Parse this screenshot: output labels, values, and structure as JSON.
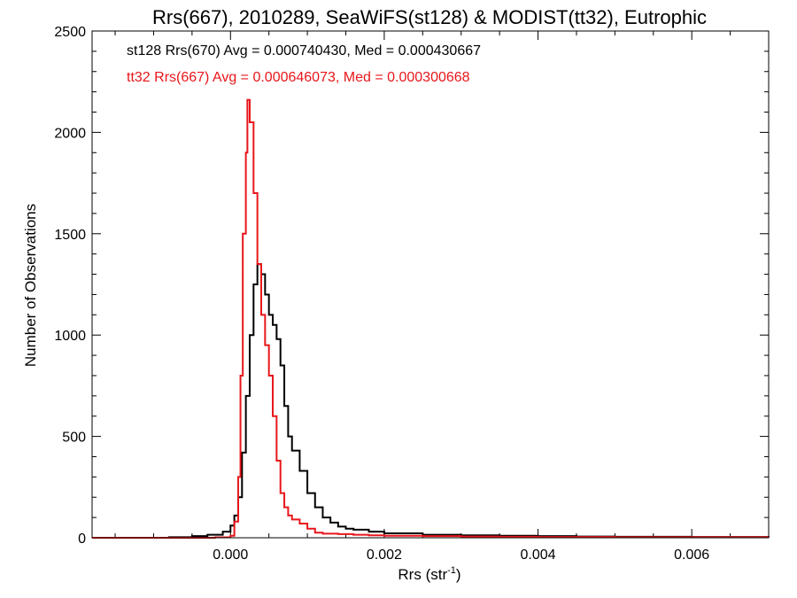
{
  "chart_data": {
    "type": "line",
    "title": "Rrs(667), 2010289, SeaWiFS(st128) & MODIST(tt32), Eutrophic",
    "xlabel": "Rrs (str",
    "xlabel_sup": "-1",
    "xlabel_close": ")",
    "ylabel": "Number of Observations",
    "xlim": [
      -0.0018,
      0.007
    ],
    "ylim": [
      0,
      2500
    ],
    "x_ticks": [
      0.0,
      0.002,
      0.004,
      0.006
    ],
    "x_tick_labels": [
      "0.000",
      "0.002",
      "0.004",
      "0.006"
    ],
    "y_ticks": [
      0,
      500,
      1000,
      1500,
      2000,
      2500
    ],
    "y_tick_labels": [
      "0",
      "500",
      "1000",
      "1500",
      "2000",
      "2500"
    ],
    "grid": false,
    "legend_position": "top-left",
    "series": [
      {
        "name": "st128 Rrs(670) Avg = 0.000740430, Med = 0.000430667",
        "color": "#000000",
        "style": "step",
        "points": [
          [
            -0.0018,
            0
          ],
          [
            -0.0012,
            0
          ],
          [
            -0.0008,
            3
          ],
          [
            -0.0005,
            8
          ],
          [
            -0.0003,
            15
          ],
          [
            -0.0001,
            30
          ],
          [
            0.0,
            60
          ],
          [
            5e-05,
            110
          ],
          [
            0.0001,
            200
          ],
          [
            0.00015,
            420
          ],
          [
            0.0002,
            700
          ],
          [
            0.00025,
            1000
          ],
          [
            0.0003,
            1250
          ],
          [
            0.00035,
            1350
          ],
          [
            0.0004,
            1300
          ],
          [
            0.00045,
            1200
          ],
          [
            0.0005,
            1100
          ],
          [
            0.00055,
            1050
          ],
          [
            0.0006,
            980
          ],
          [
            0.00065,
            850
          ],
          [
            0.0007,
            650
          ],
          [
            0.00075,
            500
          ],
          [
            0.0008,
            430
          ],
          [
            0.0009,
            330
          ],
          [
            0.001,
            220
          ],
          [
            0.0011,
            150
          ],
          [
            0.0012,
            100
          ],
          [
            0.0013,
            75
          ],
          [
            0.0014,
            55
          ],
          [
            0.0015,
            45
          ],
          [
            0.0016,
            40
          ],
          [
            0.0018,
            30
          ],
          [
            0.002,
            22
          ],
          [
            0.0025,
            15
          ],
          [
            0.003,
            12
          ],
          [
            0.0035,
            10
          ],
          [
            0.004,
            8
          ],
          [
            0.0045,
            6
          ],
          [
            0.005,
            5
          ],
          [
            0.006,
            4
          ],
          [
            0.007,
            3
          ]
        ]
      },
      {
        "name": "tt32 Rrs(667) Avg = 0.000646073, Med = 0.000300668",
        "color": "#e8161b",
        "style": "step",
        "points": [
          [
            -0.0018,
            0
          ],
          [
            -0.0006,
            0
          ],
          [
            -0.0002,
            2
          ],
          [
            0.0,
            10
          ],
          [
            5e-05,
            80
          ],
          [
            0.0001,
            300
          ],
          [
            0.00013,
            800
          ],
          [
            0.00016,
            1500
          ],
          [
            0.0002,
            1900
          ],
          [
            0.00022,
            2160
          ],
          [
            0.00025,
            2050
          ],
          [
            0.0003,
            1700
          ],
          [
            0.00035,
            1350
          ],
          [
            0.0004,
            1100
          ],
          [
            0.00045,
            950
          ],
          [
            0.0005,
            800
          ],
          [
            0.00055,
            600
          ],
          [
            0.0006,
            380
          ],
          [
            0.00065,
            220
          ],
          [
            0.0007,
            150
          ],
          [
            0.00075,
            110
          ],
          [
            0.0008,
            90
          ],
          [
            0.0009,
            70
          ],
          [
            0.001,
            45
          ],
          [
            0.0011,
            25
          ],
          [
            0.0012,
            20
          ],
          [
            0.0014,
            18
          ],
          [
            0.0016,
            15
          ],
          [
            0.0018,
            12
          ],
          [
            0.002,
            10
          ],
          [
            0.0025,
            8
          ],
          [
            0.003,
            6
          ],
          [
            0.0035,
            5
          ],
          [
            0.004,
            4
          ],
          [
            0.005,
            3
          ],
          [
            0.006,
            3
          ],
          [
            0.007,
            2
          ]
        ]
      }
    ]
  }
}
